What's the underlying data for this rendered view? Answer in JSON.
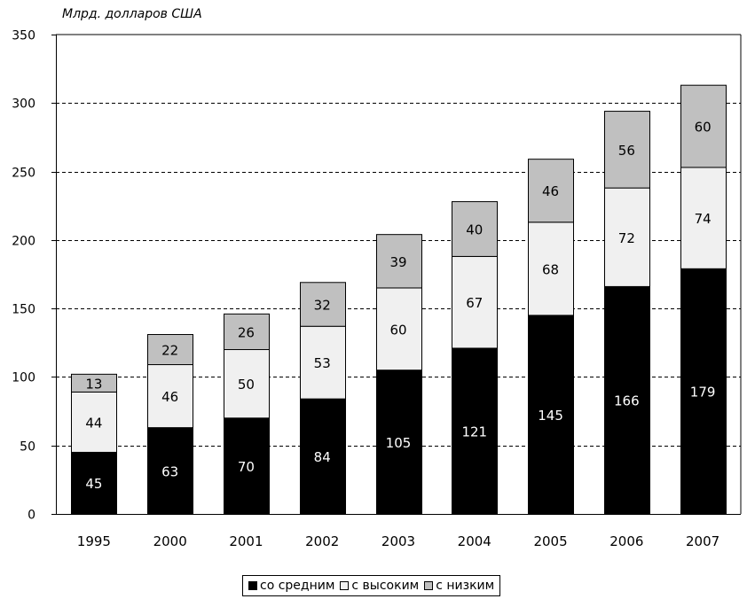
{
  "chart_data": {
    "type": "bar",
    "stacked": true,
    "unit_label": "Млрд. долларов США",
    "categories": [
      "1995",
      "2000",
      "2001",
      "2002",
      "2003",
      "2004",
      "2005",
      "2006",
      "2007"
    ],
    "series": [
      {
        "name": "со средним",
        "color": "#000000",
        "values": [
          45,
          63,
          70,
          84,
          105,
          121,
          145,
          166,
          179
        ]
      },
      {
        "name": "с высоким",
        "color": "#f0f0f0",
        "values": [
          44,
          46,
          50,
          53,
          60,
          67,
          68,
          72,
          74
        ]
      },
      {
        "name": "с низким",
        "color": "#c0c0c0",
        "values": [
          13,
          22,
          26,
          32,
          39,
          40,
          46,
          56,
          60
        ]
      }
    ],
    "ylim": [
      0,
      350
    ],
    "yticks": [
      0,
      50,
      100,
      150,
      200,
      250,
      300,
      350
    ],
    "grid": "dashed-horizontal",
    "legend_position": "bottom"
  }
}
